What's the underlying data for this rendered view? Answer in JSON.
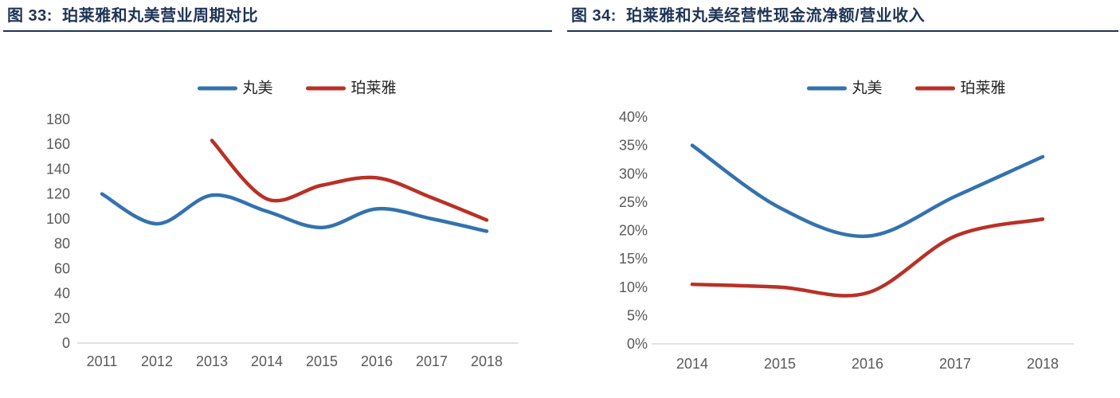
{
  "report": {
    "accent_color": "#1f3456",
    "axis_text_color": "#595959",
    "axis_line_color": "#d9d9d9",
    "legend_text_color": "#262626",
    "series_blue": "#3372af",
    "series_red": "#b93026"
  },
  "chart_data": [
    {
      "type": "line",
      "title": "图 33:  珀莱雅和丸美营业周期对比",
      "categories": [
        "2011",
        "2012",
        "2013",
        "2014",
        "2015",
        "2016",
        "2017",
        "2018"
      ],
      "series": [
        {
          "name": "丸美",
          "color": "#3372af",
          "values": [
            120,
            96,
            119,
            106,
            93,
            108,
            100,
            90
          ]
        },
        {
          "name": "珀莱雅",
          "color": "#b93026",
          "values": [
            null,
            null,
            163,
            116,
            127,
            133,
            117,
            99
          ]
        }
      ],
      "xlabel": "",
      "ylabel": "",
      "ylim": [
        0,
        180
      ],
      "ytick_step": 20,
      "percent": false,
      "grid": false,
      "legend_position": "top-center",
      "smooth": true
    },
    {
      "type": "line",
      "title": "图 34:  珀莱雅和丸美经营性现金流净额/营业收入",
      "categories": [
        "2014",
        "2015",
        "2016",
        "2017",
        "2018"
      ],
      "series": [
        {
          "name": "丸美",
          "color": "#3372af",
          "values": [
            35,
            24,
            19,
            26,
            33
          ]
        },
        {
          "name": "珀莱雅",
          "color": "#b93026",
          "values": [
            10.5,
            10,
            9,
            19,
            22
          ]
        }
      ],
      "xlabel": "",
      "ylabel": "",
      "ylim": [
        0,
        40
      ],
      "ytick_step": 5,
      "percent": true,
      "grid": false,
      "legend_position": "top-center",
      "smooth": true
    }
  ]
}
